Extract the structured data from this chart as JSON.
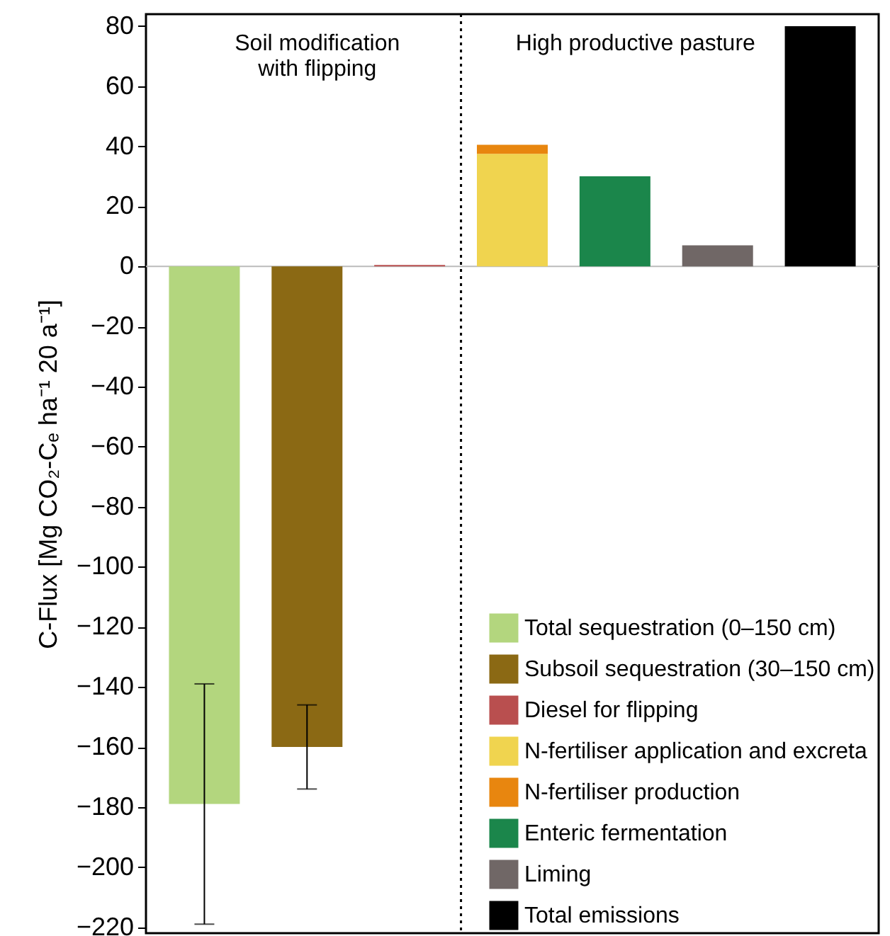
{
  "chart_data": {
    "type": "bar",
    "ylabel": "C-Flux [Mg CO₂-Cₑ ha⁻¹ 20 a⁻¹]",
    "categories": [
      null,
      null,
      null,
      null,
      null,
      null,
      null
    ],
    "stacked": true,
    "series": [
      {
        "name": "Total sequestration (0–150 cm)",
        "color": "#b3d67e",
        "values": [
          -179,
          null,
          null,
          null,
          null,
          null,
          null
        ],
        "errors": [
          [
            -219,
            -139
          ],
          null,
          null,
          null,
          null,
          null,
          null
        ]
      },
      {
        "name": "Subsoil sequestration (30–150 cm)",
        "color": "#8b6914",
        "values": [
          null,
          -160,
          null,
          null,
          null,
          null,
          null
        ],
        "errors": [
          null,
          [
            -174,
            -146
          ],
          null,
          null,
          null,
          null,
          null
        ]
      },
      {
        "name": "Diesel for flipping",
        "color": "#b94f4f",
        "values": [
          null,
          null,
          0.5,
          null,
          null,
          null,
          null
        ]
      },
      {
        "name": "N-fertiliser application and excreta",
        "color": "#f0d44f",
        "values": [
          null,
          null,
          null,
          37.5,
          null,
          null,
          null
        ]
      },
      {
        "name": "N-fertiliser production",
        "color": "#e8860f",
        "values": [
          null,
          null,
          null,
          3,
          null,
          null,
          null
        ]
      },
      {
        "name": "Enteric fermentation",
        "color": "#1b864b",
        "values": [
          null,
          null,
          null,
          null,
          30,
          null,
          null
        ]
      },
      {
        "name": "Liming",
        "color": "#706766",
        "values": [
          null,
          null,
          null,
          null,
          null,
          7,
          null
        ]
      },
      {
        "name": "Total emissions",
        "color": "#000000",
        "values": [
          null,
          null,
          null,
          null,
          null,
          null,
          80
        ]
      }
    ],
    "ylim": [
      -222,
      84
    ],
    "yticks": [
      -220,
      -200,
      -180,
      -160,
      -140,
      -120,
      -100,
      -80,
      -60,
      -40,
      -20,
      0,
      20,
      40,
      60,
      80
    ],
    "annotations": [
      "Soil modification\nwith flipping",
      "High productive pasture"
    ],
    "tick_labels": "y",
    "grid": false,
    "legend": "bottom right"
  }
}
